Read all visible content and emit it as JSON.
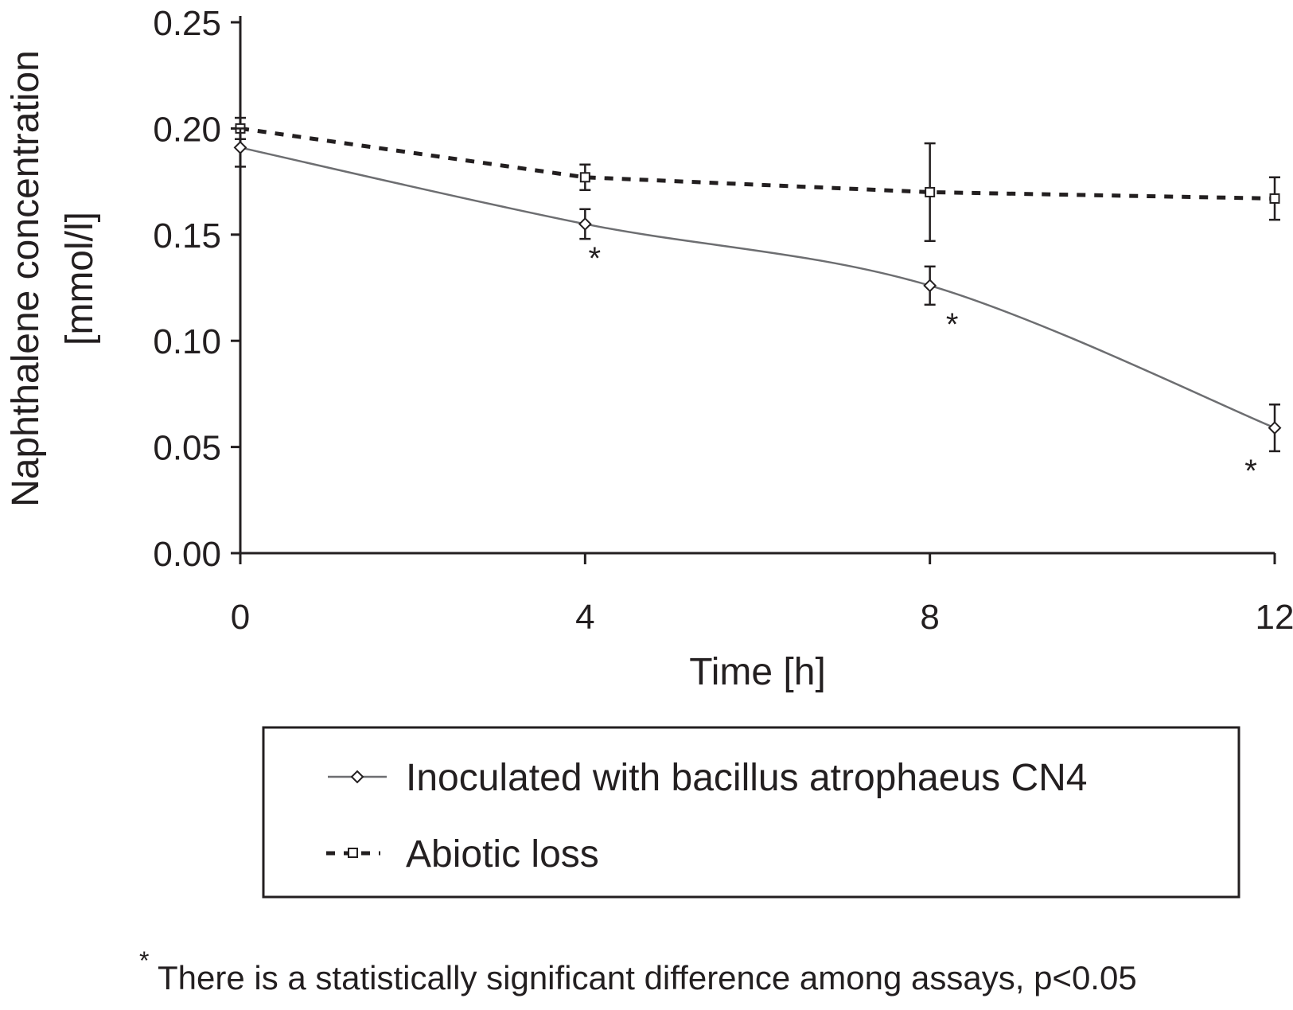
{
  "chart_data": {
    "type": "line",
    "xlabel": "Time [h]",
    "ylabel_lines": [
      "Naphthalene concentration",
      "[mmol/l]"
    ],
    "x": [
      0,
      4,
      8,
      12
    ],
    "x_tick_labels": [
      "0",
      "4",
      "8",
      "12"
    ],
    "y_tick_labels": [
      "0.00",
      "0.05",
      "0.10",
      "0.15",
      "0.20",
      "0.25"
    ],
    "xlim": [
      0,
      12
    ],
    "ylim": [
      0,
      0.25
    ],
    "grid": false,
    "legend_position": "below-plot",
    "series": [
      {
        "name": "Inoculated with bacillus atrophaeus CN4",
        "line_style": "solid",
        "marker": "diamond",
        "color": "#6d6e71",
        "values": [
          0.191,
          0.155,
          0.126,
          0.059
        ],
        "error": [
          0.009,
          0.007,
          0.009,
          0.011
        ],
        "significance": [
          "",
          "*",
          "*",
          "*"
        ]
      },
      {
        "name": "Abiotic loss",
        "line_style": "dashed",
        "marker": "square",
        "color": "#231f20",
        "values": [
          0.2,
          0.177,
          0.17,
          0.167
        ],
        "error": [
          0.005,
          0.006,
          0.023,
          0.01
        ],
        "significance": [
          "",
          "",
          "",
          ""
        ]
      }
    ]
  },
  "footnote": {
    "marker": "*",
    "text": "There is a statistically significant difference among assays, p<0.05"
  }
}
